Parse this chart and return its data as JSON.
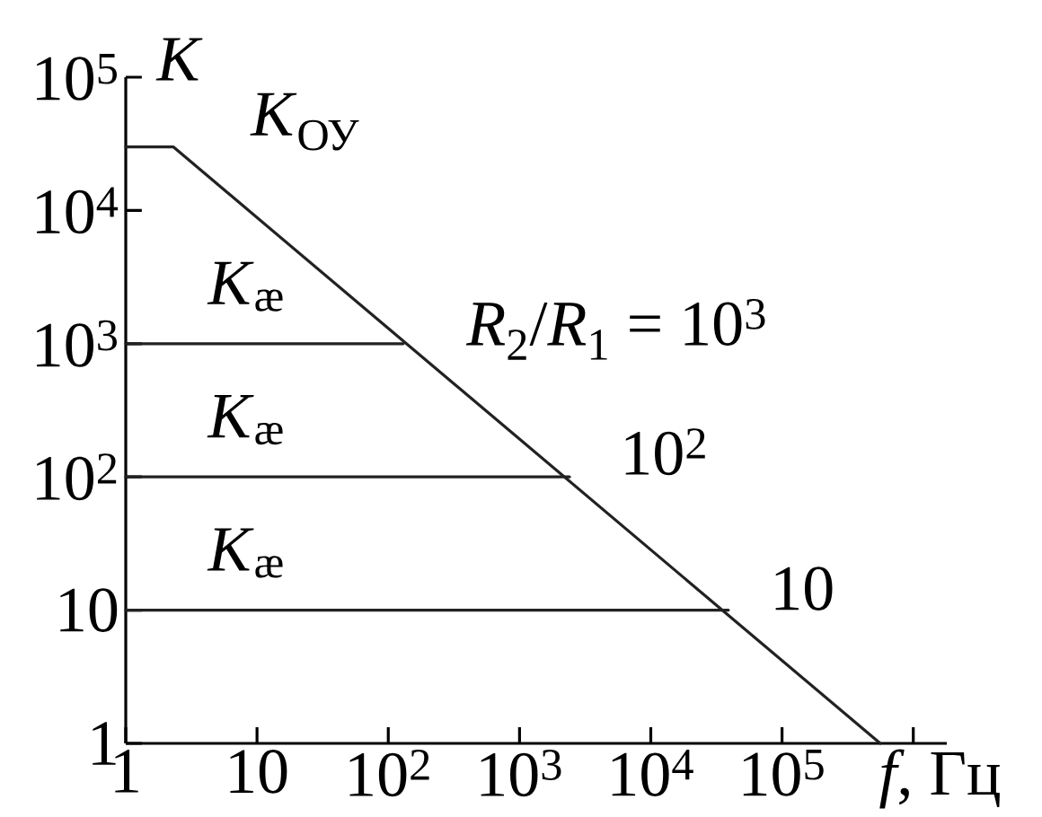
{
  "chart_data": {
    "type": "line",
    "xlabel": "*f*, Гц",
    "ylabel": "K",
    "log": "xy",
    "xlim": [
      1,
      1800000
    ],
    "ylim": [
      1,
      100000
    ],
    "xticks": [
      1,
      10,
      {
        "value": 100,
        "label": "10$^{2}$"
      },
      {
        "value": 1000,
        "label": "10$^{3}$"
      },
      {
        "value": 10000,
        "label": "10$^{4}$"
      },
      {
        "value": 100000,
        "label": "10$^{5}$"
      },
      {
        "value": 1000000,
        "label": null
      }
    ],
    "yticks": [
      1,
      10,
      {
        "value": 100,
        "label": "10$^{2}$"
      },
      {
        "value": 1000,
        "label": "10$^{3}$"
      },
      {
        "value": 10000,
        "label": "10$^{4}$"
      },
      {
        "value": 100000,
        "label": "10$^{5}$"
      }
    ],
    "series": [
      {
        "name": "*K*$_{ОУ}$",
        "color": "#222222",
        "x": [
          1,
          2.3,
          560000
        ],
        "values": [
          30000,
          30000,
          1
        ]
      },
      {
        "name": "*R*$_{2}$/*R*$_{1}$ = 10$^{3}$",
        "color": "#222222",
        "x": [
          1,
          130
        ],
        "values": [
          1000,
          1000
        ]
      },
      {
        "name": "10$^{2}$",
        "color": "#222222",
        "x": [
          1,
          2400
        ],
        "values": [
          100,
          100
        ]
      },
      {
        "name": "10",
        "color": "#222222",
        "x": [
          1,
          39000
        ],
        "values": [
          10,
          10
        ]
      }
    ],
    "annotations": [
      {
        "text": "*K*$_{æ}$",
        "y": 1000
      },
      {
        "text": "*K*$_{æ}$",
        "y": 100
      },
      {
        "text": "*K*$_{æ}$",
        "y": 10
      }
    ]
  }
}
